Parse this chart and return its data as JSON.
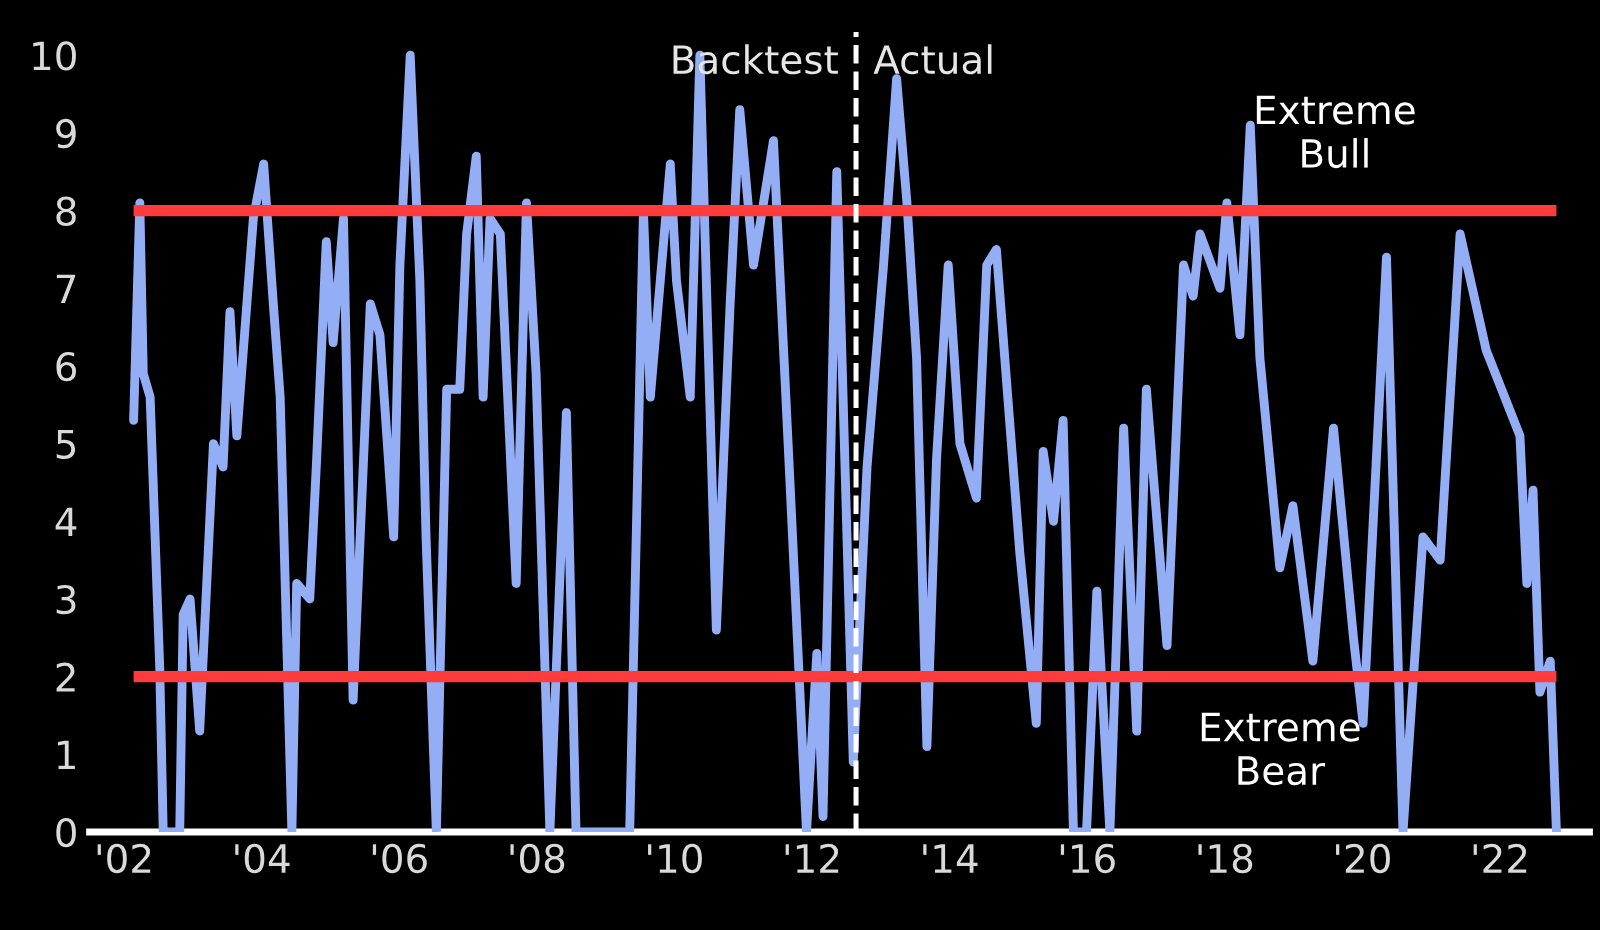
{
  "chart_data": {
    "type": "line",
    "x": [
      2002.14,
      2002.23,
      2002.28,
      2002.38,
      2002.52,
      2002.57,
      2002.81,
      2002.86,
      2002.96,
      2003.1,
      2003.3,
      2003.44,
      2003.54,
      2003.64,
      2003.88,
      2004.03,
      2004.17,
      2004.27,
      2004.44,
      2004.51,
      2004.7,
      2004.8,
      2004.94,
      2005.04,
      2005.19,
      2005.33,
      2005.58,
      2005.72,
      2005.92,
      2006.01,
      2006.16,
      2006.3,
      2006.39,
      2006.54,
      2006.69,
      2006.88,
      2006.98,
      2007.12,
      2007.22,
      2007.32,
      2007.47,
      2007.7,
      2007.85,
      2007.99,
      2008.19,
      2008.43,
      2008.57,
      2008.68,
      2009.35,
      2009.55,
      2009.65,
      2009.94,
      2010.03,
      2010.23,
      2010.37,
      2010.61,
      2010.81,
      2010.95,
      2011.15,
      2011.44,
      2011.68,
      2011.92,
      2012.07,
      2012.16,
      2012.36,
      2012.6,
      2012.8,
      2013.04,
      2013.23,
      2013.38,
      2013.52,
      2013.67,
      2013.81,
      2013.98,
      2014.15,
      2014.39,
      2014.54,
      2014.68,
      2015.02,
      2015.26,
      2015.36,
      2015.51,
      2015.65,
      2015.8,
      2015.99,
      2016.14,
      2016.33,
      2016.53,
      2016.72,
      2016.86,
      2017.16,
      2017.4,
      2017.54,
      2017.64,
      2017.93,
      2018.03,
      2018.22,
      2018.37,
      2018.51,
      2018.8,
      2018.99,
      2019.28,
      2019.58,
      2019.87,
      2020.01,
      2020.35,
      2020.59,
      2020.88,
      2021.13,
      2021.42,
      2021.8,
      2022.29,
      2022.39,
      2022.48,
      2022.58,
      2022.73,
      2022.82
    ],
    "series": [
      {
        "color": "#93aef5",
        "values": [
          5.3,
          8.1,
          5.9,
          5.6,
          2.1,
          0,
          0,
          2.8,
          3.0,
          1.3,
          5.0,
          4.7,
          6.7,
          5.1,
          7.9,
          8.6,
          6.8,
          5.6,
          0,
          3.2,
          3.0,
          4.8,
          7.6,
          6.3,
          7.9,
          1.7,
          6.8,
          6.4,
          3.8,
          7.3,
          10.0,
          7.1,
          3.8,
          0,
          5.7,
          5.7,
          7.7,
          8.7,
          5.6,
          7.9,
          7.7,
          3.2,
          8.1,
          5.9,
          0,
          5.4,
          0,
          0,
          0,
          8.0,
          5.6,
          8.6,
          7.1,
          5.6,
          10.0,
          2.6,
          6.8,
          9.3,
          7.3,
          8.9,
          4.5,
          0,
          2.3,
          0.2,
          8.5,
          0.9,
          4.7,
          7.3,
          9.7,
          8.1,
          6.1,
          1.1,
          4.8,
          7.3,
          5.0,
          4.3,
          7.3,
          7.5,
          3.6,
          1.4,
          4.9,
          4.0,
          5.3,
          0,
          0,
          3.1,
          0,
          5.2,
          1.3,
          5.7,
          2.4,
          7.3,
          6.9,
          7.7,
          7.0,
          8.1,
          6.4,
          9.1,
          6.1,
          3.4,
          4.2,
          2.2,
          5.2,
          2.5,
          1.4,
          7.4,
          0,
          3.8,
          3.5,
          7.7,
          6.2,
          5.1,
          3.2,
          4.4,
          1.8,
          2.2,
          0
        ]
      }
    ],
    "xlim": [
      2001.5,
      2023.3
    ],
    "xticks": [
      {
        "value": 2002,
        "label": "'02"
      },
      {
        "value": 2004,
        "label": "'04"
      },
      {
        "value": 2006,
        "label": "'06"
      },
      {
        "value": 2008,
        "label": "'08"
      },
      {
        "value": 2010,
        "label": "'10"
      },
      {
        "value": 2012,
        "label": "'12"
      },
      {
        "value": 2014,
        "label": "'14"
      },
      {
        "value": 2016,
        "label": "'16"
      },
      {
        "value": 2018,
        "label": "'18"
      },
      {
        "value": 2020,
        "label": "'20"
      },
      {
        "value": 2022,
        "label": "'22"
      }
    ],
    "ylim": [
      0,
      10.3
    ],
    "yticks": [
      0,
      1,
      2,
      3,
      4,
      5,
      6,
      7,
      8,
      9,
      10
    ],
    "ref_lines": [
      {
        "axis": "y",
        "value": 8,
        "label": "Extreme\nBull",
        "color": "#ff3b3b",
        "line_style": "solid"
      },
      {
        "axis": "y",
        "value": 2,
        "label": "Extreme\nBear",
        "color": "#ff3b3b",
        "line_style": "solid"
      },
      {
        "axis": "x",
        "value": 2012.64,
        "color": "#ffffff",
        "line_style": "dashed"
      }
    ],
    "annotations": [
      {
        "text": "Backtest",
        "x": 2012.64,
        "y": 10
      },
      {
        "text": "Actual",
        "x": 2012.64,
        "y": 10
      }
    ],
    "grid": false,
    "legend": false,
    "marker": "none",
    "line_style": "solid"
  }
}
